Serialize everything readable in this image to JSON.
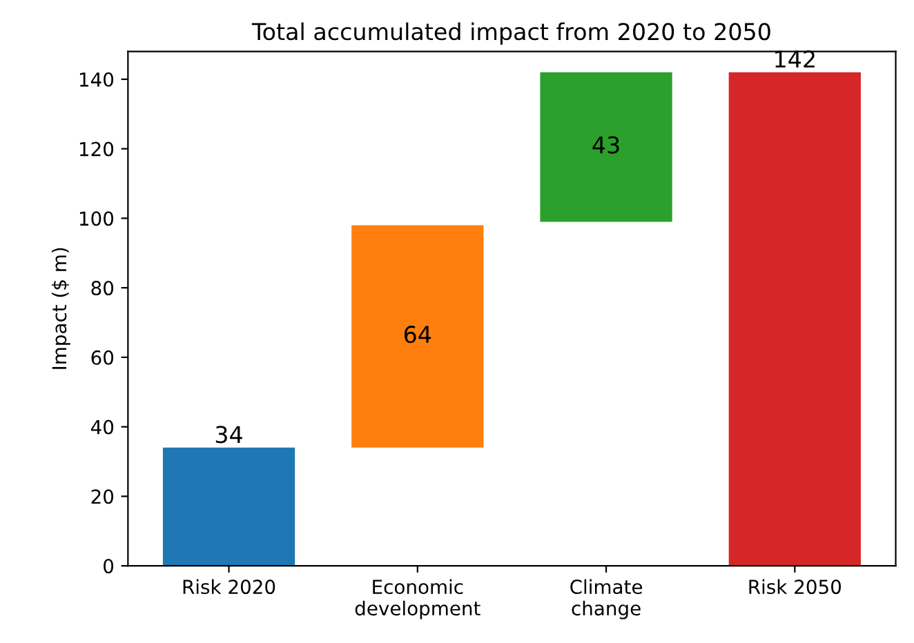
{
  "chart_data": {
    "type": "bar",
    "title": "Total accumulated impact from 2020 to 2050",
    "ylabel": "Impact ($ m)",
    "categories": [
      "Risk 2020",
      "Economic\ndevelopment",
      "Climate\nchange",
      "Risk 2050"
    ],
    "values": [
      34,
      64,
      43,
      142
    ],
    "base": [
      0,
      34,
      99,
      0
    ],
    "colors": [
      "#1f77b4",
      "#ff7f0e",
      "#2ca02c",
      "#d62728"
    ],
    "value_labels": [
      "34",
      "64",
      "43",
      "142"
    ],
    "ylim": [
      0,
      148
    ],
    "yticks": [
      0,
      20,
      40,
      60,
      80,
      100,
      120,
      140
    ],
    "grid": false
  }
}
